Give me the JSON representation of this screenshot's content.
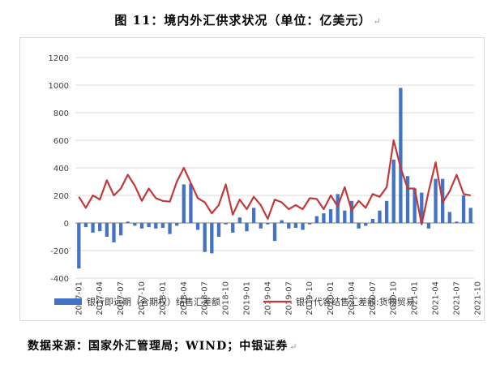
{
  "title": "图 11：境内外汇供求状况（单位：亿美元）",
  "title_mark": "↵",
  "source": "数据来源：国家外汇管理局；WIND；中银证券",
  "source_mark": "↵",
  "colors": {
    "bar": "#4472c4",
    "line": "#c0393b",
    "grid": "#d9d9d9",
    "axis": "#808080"
  },
  "chart_data": {
    "type": "bar",
    "ylim": [
      -400,
      1200
    ],
    "yticks": [
      -400,
      -200,
      0,
      200,
      400,
      600,
      800,
      1000,
      1200
    ],
    "x_tick_labels": [
      "2017-01",
      "2017-04",
      "2017-07",
      "2017-10",
      "2018-01",
      "2018-04",
      "2018-07",
      "2018-10",
      "2019-01",
      "2019-04",
      "2019-07",
      "2019-10",
      "2020-01",
      "2020-04",
      "2020-07",
      "2020-10",
      "2021-01",
      "2021-04",
      "2021-07",
      "2021-10"
    ],
    "series": [
      {
        "name": "银行即远期（含期权）结售汇差额",
        "type": "bar",
        "values": [
          -330,
          -30,
          -70,
          -60,
          -100,
          -140,
          -90,
          10,
          -20,
          -40,
          -30,
          -40,
          -35,
          -80,
          -20,
          280,
          285,
          -50,
          -210,
          -220,
          -100,
          -10,
          -70,
          40,
          -60,
          110,
          -40,
          -10,
          -130,
          20,
          -40,
          -35,
          -50,
          -10,
          50,
          70,
          100,
          210,
          90,
          160,
          -40,
          -20,
          30,
          90,
          160,
          460,
          980,
          340,
          250,
          220,
          -40,
          320,
          320,
          80,
          10,
          200,
          110
        ]
      },
      {
        "name": "银行代客结售汇差额:货物贸易",
        "type": "line",
        "values": [
          190,
          110,
          200,
          170,
          310,
          200,
          250,
          350,
          270,
          160,
          250,
          180,
          160,
          155,
          300,
          400,
          290,
          180,
          150,
          70,
          130,
          280,
          60,
          170,
          100,
          190,
          130,
          30,
          170,
          150,
          100,
          130,
          100,
          180,
          175,
          100,
          200,
          120,
          260,
          90,
          160,
          110,
          210,
          190,
          260,
          600,
          400,
          250,
          250,
          -10,
          230,
          440,
          150,
          230,
          350,
          210,
          200
        ]
      }
    ]
  }
}
